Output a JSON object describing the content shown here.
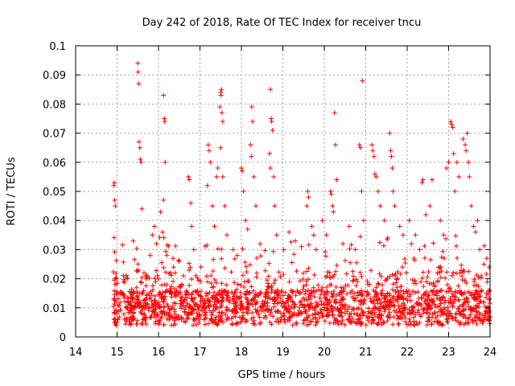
{
  "chart_data": {
    "type": "scatter",
    "title": "Day 242 of 2018, Rate Of TEC Index for receiver tncu",
    "xlabel": "GPS time / hours",
    "ylabel": "ROTI / TECUs",
    "xlim": [
      14,
      24
    ],
    "ylim": [
      0,
      0.1
    ],
    "x_ticks": [
      "14",
      "15",
      "16",
      "17",
      "18",
      "19",
      "20",
      "21",
      "22",
      "23",
      "24"
    ],
    "y_ticks": [
      "0",
      "0.01",
      "0.02",
      "0.03",
      "0.04",
      "0.05",
      "0.06",
      "0.07",
      "0.08",
      "0.09",
      "0.1"
    ],
    "grid": true,
    "marker": "plus",
    "color": "#ff0000",
    "series": [
      {
        "points": [
          [
            14.92,
            0.052
          ],
          [
            14.93,
            0.053
          ],
          [
            14.94,
            0.047
          ],
          [
            14.96,
            0.045
          ],
          [
            14.95,
            0.018
          ],
          [
            14.97,
            0.012
          ],
          [
            14.99,
            0.009
          ],
          [
            15.02,
            0.006
          ],
          [
            15.5,
            0.094
          ],
          [
            15.51,
            0.091
          ],
          [
            15.52,
            0.087
          ],
          [
            15.53,
            0.067
          ],
          [
            15.55,
            0.065
          ],
          [
            15.56,
            0.061
          ],
          [
            15.58,
            0.06
          ],
          [
            15.6,
            0.044
          ],
          [
            15.65,
            0.022
          ],
          [
            15.7,
            0.02
          ],
          [
            15.8,
            0.028
          ],
          [
            15.85,
            0.035
          ],
          [
            15.9,
            0.038
          ],
          [
            15.95,
            0.032
          ],
          [
            16.12,
            0.083
          ],
          [
            16.14,
            0.075
          ],
          [
            16.15,
            0.074
          ],
          [
            16.16,
            0.06
          ],
          [
            16.12,
            0.047
          ],
          [
            16.05,
            0.043
          ],
          [
            16.1,
            0.036
          ],
          [
            16.2,
            0.028
          ],
          [
            16.35,
            0.027
          ],
          [
            16.4,
            0.022
          ],
          [
            16.5,
            0.026
          ],
          [
            16.6,
            0.021
          ],
          [
            16.72,
            0.055
          ],
          [
            16.74,
            0.054
          ],
          [
            16.78,
            0.046
          ],
          [
            16.8,
            0.038
          ],
          [
            16.85,
            0.03
          ],
          [
            17.2,
            0.066
          ],
          [
            17.22,
            0.064
          ],
          [
            17.18,
            0.052
          ],
          [
            17.25,
            0.06
          ],
          [
            17.3,
            0.045
          ],
          [
            17.35,
            0.038
          ],
          [
            17.4,
            0.055
          ],
          [
            17.43,
            0.058
          ],
          [
            17.5,
            0.084
          ],
          [
            17.52,
            0.085
          ],
          [
            17.51,
            0.083
          ],
          [
            17.48,
            0.079
          ],
          [
            17.53,
            0.077
          ],
          [
            17.55,
            0.074
          ],
          [
            17.5,
            0.065
          ],
          [
            17.55,
            0.055
          ],
          [
            17.6,
            0.045
          ],
          [
            17.65,
            0.035
          ],
          [
            17.8,
            0.03
          ],
          [
            17.9,
            0.028
          ],
          [
            18.0,
            0.058
          ],
          [
            18.02,
            0.057
          ],
          [
            18.05,
            0.05
          ],
          [
            18.1,
            0.04
          ],
          [
            18.15,
            0.037
          ],
          [
            18.25,
            0.079
          ],
          [
            18.27,
            0.074
          ],
          [
            18.22,
            0.066
          ],
          [
            18.24,
            0.062
          ],
          [
            18.3,
            0.055
          ],
          [
            18.35,
            0.045
          ],
          [
            18.45,
            0.032
          ],
          [
            18.7,
            0.085
          ],
          [
            18.72,
            0.075
          ],
          [
            18.73,
            0.074
          ],
          [
            18.75,
            0.071
          ],
          [
            18.68,
            0.063
          ],
          [
            18.7,
            0.058
          ],
          [
            18.78,
            0.055
          ],
          [
            18.8,
            0.045
          ],
          [
            18.85,
            0.035
          ],
          [
            19.15,
            0.036
          ],
          [
            19.3,
            0.033
          ],
          [
            19.45,
            0.031
          ],
          [
            19.6,
            0.05
          ],
          [
            19.62,
            0.048
          ],
          [
            19.58,
            0.045
          ],
          [
            19.7,
            0.038
          ],
          [
            19.8,
            0.03
          ],
          [
            19.95,
            0.04
          ],
          [
            20.05,
            0.035
          ],
          [
            20.15,
            0.05
          ],
          [
            20.17,
            0.049
          ],
          [
            20.2,
            0.045
          ],
          [
            20.22,
            0.043
          ],
          [
            20.25,
            0.077
          ],
          [
            20.27,
            0.066
          ],
          [
            20.3,
            0.054
          ],
          [
            20.45,
            0.032
          ],
          [
            20.6,
            0.038
          ],
          [
            20.75,
            0.03
          ],
          [
            20.85,
            0.066
          ],
          [
            20.87,
            0.065
          ],
          [
            20.92,
            0.088
          ],
          [
            20.9,
            0.05
          ],
          [
            20.95,
            0.04
          ],
          [
            21.15,
            0.066
          ],
          [
            21.17,
            0.064
          ],
          [
            21.2,
            0.062
          ],
          [
            21.22,
            0.056
          ],
          [
            21.25,
            0.055
          ],
          [
            21.3,
            0.05
          ],
          [
            21.35,
            0.045
          ],
          [
            21.45,
            0.04
          ],
          [
            21.58,
            0.07
          ],
          [
            21.6,
            0.064
          ],
          [
            21.62,
            0.062
          ],
          [
            21.64,
            0.058
          ],
          [
            21.66,
            0.05
          ],
          [
            21.7,
            0.045
          ],
          [
            21.82,
            0.038
          ],
          [
            21.9,
            0.035
          ],
          [
            22.05,
            0.04
          ],
          [
            22.1,
            0.032
          ],
          [
            22.2,
            0.035
          ],
          [
            22.3,
            0.03
          ],
          [
            22.38,
            0.054
          ],
          [
            22.36,
            0.053
          ],
          [
            22.45,
            0.042
          ],
          [
            22.55,
            0.045
          ],
          [
            22.6,
            0.054
          ],
          [
            22.8,
            0.04
          ],
          [
            22.88,
            0.035
          ],
          [
            22.95,
            0.058
          ],
          [
            23.0,
            0.06
          ],
          [
            23.05,
            0.074
          ],
          [
            23.07,
            0.073
          ],
          [
            23.1,
            0.072
          ],
          [
            23.12,
            0.063
          ],
          [
            23.15,
            0.05
          ],
          [
            23.2,
            0.06
          ],
          [
            23.25,
            0.055
          ],
          [
            23.35,
            0.068
          ],
          [
            23.4,
            0.066
          ],
          [
            23.45,
            0.07
          ],
          [
            23.42,
            0.064
          ],
          [
            23.48,
            0.06
          ],
          [
            23.5,
            0.055
          ],
          [
            23.55,
            0.045
          ],
          [
            23.6,
            0.038
          ],
          [
            23.65,
            0.036
          ],
          [
            23.7,
            0.04
          ],
          [
            23.75,
            0.03
          ],
          [
            23.85,
            0.025
          ],
          [
            23.92,
            0.027
          ],
          [
            23.98,
            0.024
          ]
        ]
      }
    ]
  }
}
